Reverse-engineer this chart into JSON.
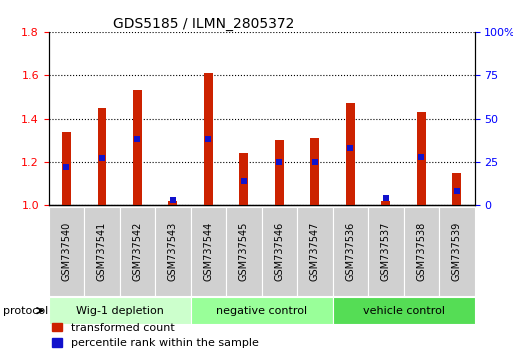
{
  "title": "GDS5185 / ILMN_2805372",
  "samples": [
    "GSM737540",
    "GSM737541",
    "GSM737542",
    "GSM737543",
    "GSM737544",
    "GSM737545",
    "GSM737546",
    "GSM737547",
    "GSM737536",
    "GSM737537",
    "GSM737538",
    "GSM737539"
  ],
  "transformed_count": [
    1.34,
    1.45,
    1.53,
    1.02,
    1.61,
    1.24,
    1.3,
    1.31,
    1.47,
    1.02,
    1.43,
    1.15
  ],
  "percentile_rank_pct": [
    22,
    27,
    38,
    3,
    38,
    14,
    25,
    25,
    33,
    4,
    28,
    8
  ],
  "groups": [
    {
      "label": "Wig-1 depletion",
      "start": 0,
      "end": 3,
      "color": "#ccffcc"
    },
    {
      "label": "negative control",
      "start": 4,
      "end": 7,
      "color": "#99ff99"
    },
    {
      "label": "vehicle control",
      "start": 8,
      "end": 11,
      "color": "#55dd55"
    }
  ],
  "ylim_left": [
    1.0,
    1.8
  ],
  "ylim_right": [
    0,
    100
  ],
  "yticks_left": [
    1.0,
    1.2,
    1.4,
    1.6,
    1.8
  ],
  "yticks_right": [
    0,
    25,
    50,
    75,
    100
  ],
  "bar_color": "#cc2200",
  "dot_color": "#1111cc",
  "bar_width": 0.25,
  "title_fontsize": 10,
  "tick_fontsize": 8,
  "label_fontsize": 7
}
